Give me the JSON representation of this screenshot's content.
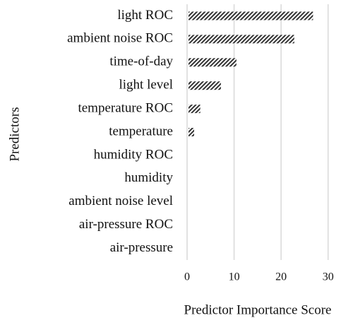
{
  "chart_data": {
    "type": "hbar",
    "xlabel": "Predictor Importance Score",
    "ylabel": "Predictors",
    "categories": [
      "light ROC",
      "ambient noise ROC",
      "time-of-day",
      "light level",
      "temperature ROC",
      "temperature",
      "humidity ROC",
      "humidity",
      "ambient noise level",
      "air-pressure ROC",
      "air-pressure"
    ],
    "values": [
      26.8,
      22.8,
      10.5,
      7.2,
      2.8,
      1.5,
      0,
      0,
      0,
      0,
      0
    ],
    "color": "#333333",
    "xlim": [
      0,
      35
    ],
    "xticks": [
      0,
      10,
      20,
      30
    ],
    "grid": true
  }
}
